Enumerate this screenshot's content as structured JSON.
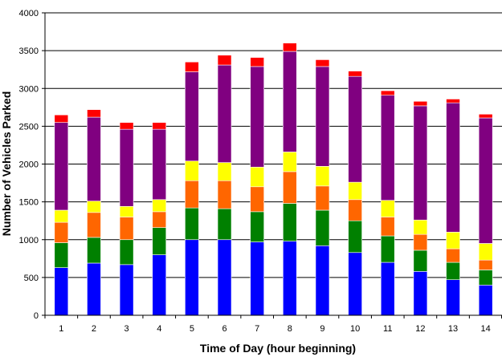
{
  "chart_data": {
    "type": "bar",
    "stacked": true,
    "title": "",
    "xlabel": "Time of Day (hour beginning)",
    "ylabel": "Number of Vehicles Parked",
    "ylim": [
      0,
      4000
    ],
    "yticks": [
      0,
      500,
      1000,
      1500,
      2000,
      2500,
      3000,
      3500,
      4000
    ],
    "grid": "horizontal",
    "legend": "none",
    "categories": [
      "1",
      "2",
      "3",
      "4",
      "5",
      "6",
      "7",
      "8",
      "9",
      "10",
      "11",
      "12",
      "13",
      "14"
    ],
    "series": [
      {
        "color": "#0000ff",
        "values": [
          630,
          690,
          670,
          800,
          1000,
          1000,
          970,
          980,
          920,
          830,
          700,
          580,
          470,
          400
        ]
      },
      {
        "color": "#008000",
        "values": [
          330,
          340,
          330,
          360,
          420,
          410,
          400,
          500,
          470,
          420,
          350,
          280,
          230,
          200
        ]
      },
      {
        "color": "#ff6600",
        "values": [
          270,
          330,
          300,
          210,
          360,
          370,
          330,
          420,
          320,
          280,
          250,
          210,
          180,
          130
        ]
      },
      {
        "color": "#ffff00",
        "values": [
          160,
          150,
          140,
          160,
          260,
          240,
          260,
          260,
          260,
          230,
          220,
          190,
          220,
          220
        ]
      },
      {
        "color": "#800080",
        "values": [
          1160,
          1110,
          1020,
          930,
          1180,
          1290,
          1330,
          1330,
          1320,
          1400,
          1390,
          1510,
          1710,
          1660
        ]
      },
      {
        "color": "#ff0000",
        "values": [
          100,
          100,
          90,
          90,
          130,
          130,
          120,
          110,
          90,
          70,
          60,
          60,
          50,
          50
        ]
      }
    ]
  }
}
